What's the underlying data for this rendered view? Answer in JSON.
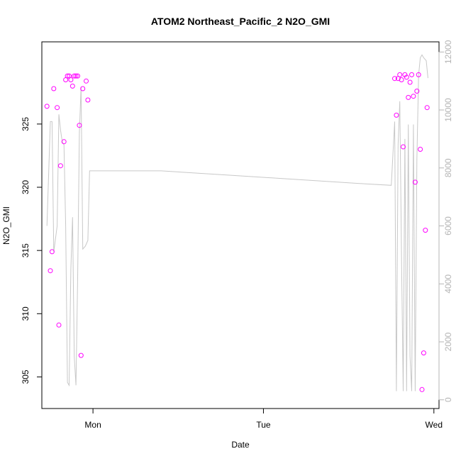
{
  "chart_data": {
    "type": "scatter",
    "title": "ATOM2 Northeast_Pacific_2 N2O_GMI",
    "xlabel": "Date",
    "ylabel": "N2O_GMI",
    "x_ticks": [
      "Mon",
      "Tue",
      "Wed"
    ],
    "x_tick_positions_days": [
      1,
      2,
      3
    ],
    "xlim_days": [
      0.7,
      3.03
    ],
    "ylim": [
      302.5,
      331.5
    ],
    "y_ticks": [
      305,
      310,
      315,
      320,
      325
    ],
    "y2_label": "",
    "y2lim": [
      -300,
      12350
    ],
    "y2_ticks": [
      0,
      2000,
      4000,
      6000,
      8000,
      10000,
      12000
    ],
    "grid": false,
    "legend": "none",
    "colors": {
      "points": "#ff00ff",
      "altitude_line": "#c8c8c8",
      "right_axis": "#b4b4b4",
      "axis": "#000000"
    },
    "series": [
      {
        "type": "scatter",
        "axis": "left",
        "points": [
          [
            0.73,
            326.4
          ],
          [
            0.75,
            313.4
          ],
          [
            0.76,
            314.9
          ],
          [
            0.77,
            327.8
          ],
          [
            0.79,
            326.3
          ],
          [
            0.8,
            309.1
          ],
          [
            0.81,
            321.7
          ],
          [
            0.83,
            323.6
          ],
          [
            0.84,
            328.5
          ],
          [
            0.85,
            328.8
          ],
          [
            0.86,
            328.8
          ],
          [
            0.87,
            328.5
          ],
          [
            0.88,
            328.0
          ],
          [
            0.89,
            328.8
          ],
          [
            0.9,
            328.8
          ],
          [
            0.91,
            328.8
          ],
          [
            0.92,
            324.9
          ],
          [
            0.93,
            306.7
          ],
          [
            0.94,
            327.8
          ],
          [
            0.96,
            328.4
          ],
          [
            0.97,
            326.9
          ],
          [
            2.77,
            328.6
          ],
          [
            2.78,
            325.7
          ],
          [
            2.79,
            328.6
          ],
          [
            2.8,
            328.9
          ],
          [
            2.81,
            328.5
          ],
          [
            2.82,
            323.2
          ],
          [
            2.83,
            328.9
          ],
          [
            2.84,
            328.7
          ],
          [
            2.85,
            327.1
          ],
          [
            2.86,
            328.3
          ],
          [
            2.87,
            328.9
          ],
          [
            2.88,
            327.2
          ],
          [
            2.89,
            320.4
          ],
          [
            2.9,
            327.6
          ],
          [
            2.91,
            328.9
          ],
          [
            2.92,
            323.0
          ],
          [
            2.93,
            304.0
          ],
          [
            2.94,
            306.9
          ],
          [
            2.95,
            316.6
          ],
          [
            2.96,
            326.3
          ]
        ]
      },
      {
        "type": "line",
        "axis": "right",
        "name": "",
        "points": [
          [
            0.73,
            6000
          ],
          [
            0.75,
            9600
          ],
          [
            0.76,
            9600
          ],
          [
            0.77,
            5100
          ],
          [
            0.79,
            6000
          ],
          [
            0.8,
            9850
          ],
          [
            0.81,
            9300
          ],
          [
            0.82,
            8900
          ],
          [
            0.83,
            8800
          ],
          [
            0.84,
            6000
          ],
          [
            0.85,
            600
          ],
          [
            0.86,
            500
          ],
          [
            0.87,
            4500
          ],
          [
            0.88,
            6300
          ],
          [
            0.89,
            1500
          ],
          [
            0.9,
            500
          ],
          [
            0.91,
            4200
          ],
          [
            0.92,
            9200
          ],
          [
            0.93,
            10800
          ],
          [
            0.94,
            5200
          ],
          [
            0.955,
            5300
          ],
          [
            0.97,
            5500
          ],
          [
            0.98,
            7900
          ],
          [
            1.4,
            7900
          ],
          [
            1.8,
            7750
          ],
          [
            2.2,
            7600
          ],
          [
            2.6,
            7450
          ],
          [
            2.75,
            7400
          ],
          [
            2.77,
            9600
          ],
          [
            2.78,
            300
          ],
          [
            2.79,
            8800
          ],
          [
            2.8,
            10300
          ],
          [
            2.81,
            5000
          ],
          [
            2.82,
            300
          ],
          [
            2.83,
            9000
          ],
          [
            2.84,
            300
          ],
          [
            2.85,
            9500
          ],
          [
            2.86,
            1500
          ],
          [
            2.87,
            300
          ],
          [
            2.88,
            9500
          ],
          [
            2.89,
            300
          ],
          [
            2.9,
            8300
          ],
          [
            2.91,
            11200
          ],
          [
            2.92,
            11800
          ],
          [
            2.93,
            11900
          ],
          [
            2.94,
            11800
          ],
          [
            2.955,
            11700
          ],
          [
            2.965,
            11100
          ]
        ]
      }
    ]
  }
}
